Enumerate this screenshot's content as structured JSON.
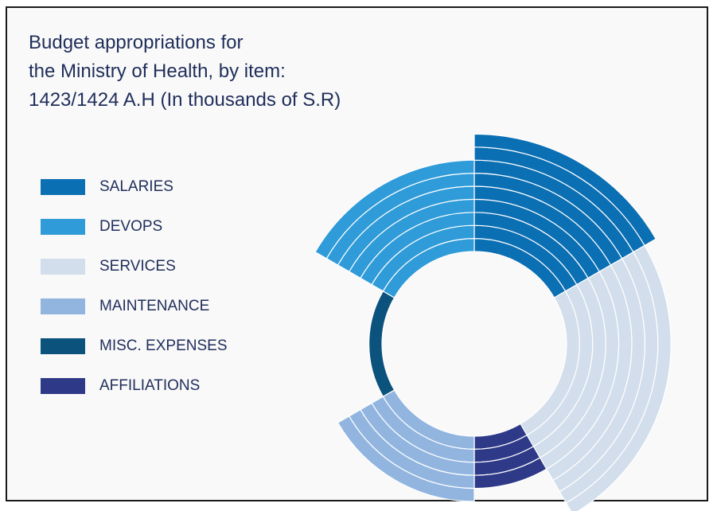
{
  "title_lines": [
    "Budget appropriations for",
    "the Ministry of Health, by item:",
    "1423/1424 A.H (In thousands of S.R)"
  ],
  "legend": [
    {
      "label": "SALARIES",
      "color": "#0b6fb3"
    },
    {
      "label": "DEVOPS",
      "color": "#2f9bd9"
    },
    {
      "label": "SERVICES",
      "color": "#d2deec"
    },
    {
      "label": "MAINTENANCE",
      "color": "#92b5e0"
    },
    {
      "label": "MISC. EXPENSES",
      "color": "#0b527c"
    },
    {
      "label": "AFFILIATIONS",
      "color": "#2e3a87"
    }
  ],
  "chart_data": {
    "type": "radial-bar",
    "categories": [
      "SALARIES",
      "SERVICES",
      "AFFILIATIONS",
      "MAINTENANCE",
      "MISC. EXPENSES",
      "DEVOPS"
    ],
    "values": [
      9,
      8,
      4,
      5,
      1,
      7
    ],
    "colors": [
      "#0b6fb3",
      "#d2deec",
      "#2e3a87",
      "#92b5e0",
      "#0b527c",
      "#2f9bd9"
    ],
    "angles_deg": [
      [
        0,
        60
      ],
      [
        60,
        150
      ],
      [
        150,
        180
      ],
      [
        180,
        240
      ],
      [
        240,
        300
      ],
      [
        300,
        360
      ]
    ]
  }
}
